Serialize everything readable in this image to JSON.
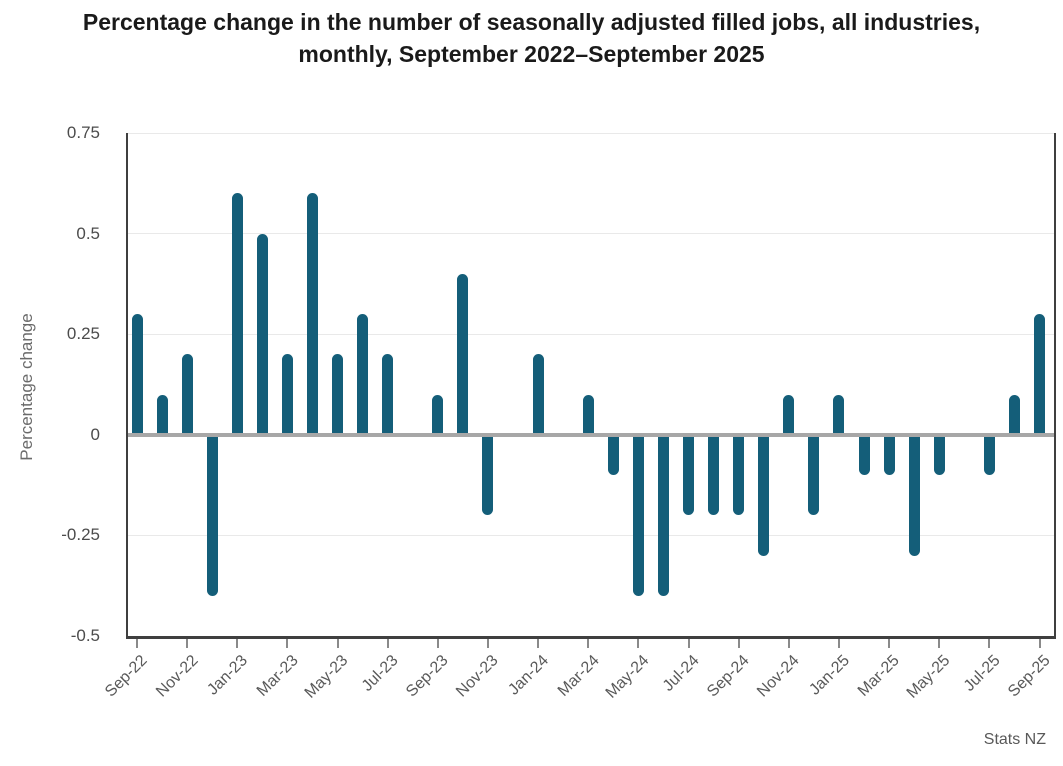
{
  "title": "Percentage change in the number of seasonally adjusted filled jobs, all industries, monthly, September 2022–September 2025",
  "source": "Stats NZ",
  "y_axis_title": "Percentage change",
  "colors": {
    "bar": "#145e79",
    "zero_line": "#a7a7a7",
    "gridline": "#e9e9e9",
    "axis": "#3f3f3f",
    "tick_label": "#595959"
  },
  "chart_data": {
    "type": "bar",
    "title": "Percentage change in the number of seasonally adjusted filled jobs, all industries, monthly, September 2022–September 2025",
    "xlabel": "",
    "ylabel": "Percentage change",
    "ylim": [
      -0.5,
      0.75
    ],
    "yticks": [
      0.75,
      0.5,
      0.25,
      0,
      -0.25,
      -0.5
    ],
    "ytick_labels": [
      "0.75",
      "0.5",
      "0.25",
      "0",
      "-0.25",
      "-0.5"
    ],
    "xtick_label_step": 2,
    "grid": true,
    "legend": false,
    "source": "Stats NZ",
    "categories": [
      "Sep-22",
      "Oct-22",
      "Nov-22",
      "Dec-22",
      "Jan-23",
      "Feb-23",
      "Mar-23",
      "Apr-23",
      "May-23",
      "Jun-23",
      "Jul-23",
      "Aug-23",
      "Sep-23",
      "Oct-23",
      "Nov-23",
      "Dec-23",
      "Jan-24",
      "Feb-24",
      "Mar-24",
      "Apr-24",
      "May-24",
      "Jun-24",
      "Jul-24",
      "Aug-24",
      "Sep-24",
      "Oct-24",
      "Nov-24",
      "Dec-24",
      "Jan-25",
      "Feb-25",
      "Mar-25",
      "Apr-25",
      "May-25",
      "Jun-25",
      "Jul-25",
      "Aug-25",
      "Sep-25"
    ],
    "values": [
      0.3,
      0.1,
      0.2,
      -0.4,
      0.6,
      0.5,
      0.2,
      0.6,
      0.2,
      0.3,
      0.2,
      0,
      0.1,
      0.4,
      -0.2,
      0,
      0.2,
      0,
      0.1,
      -0.1,
      -0.4,
      -0.4,
      -0.2,
      -0.2,
      -0.2,
      -0.3,
      0.1,
      -0.2,
      0.1,
      -0.1,
      -0.1,
      -0.3,
      -0.1,
      0,
      -0.1,
      0.1,
      0.3
    ]
  }
}
